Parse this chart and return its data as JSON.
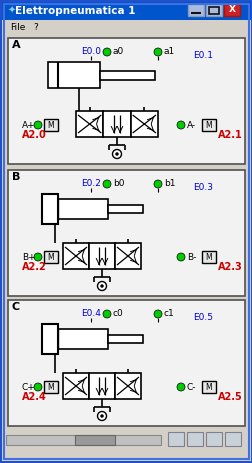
{
  "title": "Elettropneumatica 1",
  "sections": [
    "A",
    "B",
    "C"
  ],
  "outputs_p": [
    "A2.0",
    "A2.2",
    "A2.4"
  ],
  "outputs_m": [
    "A2.1",
    "A2.3",
    "A2.5"
  ],
  "inputs_0": [
    "E0.0",
    "E0.2",
    "E0.4"
  ],
  "inputs_1": [
    "E0.1",
    "E0.3",
    "E0.5"
  ],
  "sensor_0": [
    "a0",
    "b0",
    "c0"
  ],
  "sensor_1": [
    "a1",
    "b1",
    "c1"
  ],
  "bg_color": "#d4d0c8",
  "title_bar_color": "#0055cc",
  "title_text_color": "#ffffff",
  "section_bg": "#f2f2f2",
  "green_dot": "#00cc00",
  "blue_text": "#0000dd",
  "red_text": "#cc0000",
  "black": "#000000",
  "white": "#ffffff",
  "outer_border": "#2050cc",
  "fig_w": 2.53,
  "fig_h": 4.63,
  "dpi": 100
}
